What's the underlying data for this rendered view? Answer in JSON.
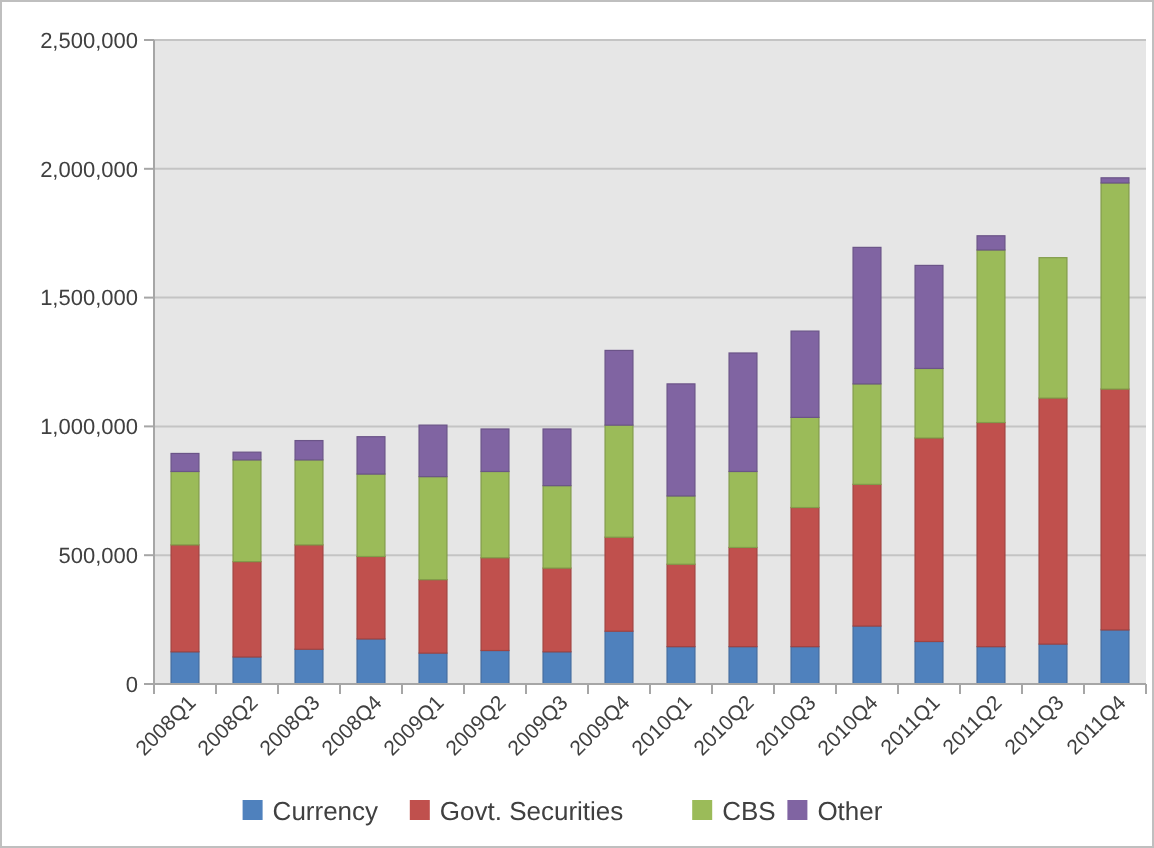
{
  "chart_data": {
    "type": "bar",
    "stacked": true,
    "categories": [
      "2008Q1",
      "2008Q2",
      "2008Q3",
      "2008Q4",
      "2009Q1",
      "2009Q2",
      "2009Q3",
      "2009Q4",
      "2010Q1",
      "2010Q2",
      "2010Q3",
      "2010Q4",
      "2011Q1",
      "2011Q2",
      "2011Q3",
      "2011Q4"
    ],
    "series": [
      {
        "name": "Currency",
        "color": "#4f81bd",
        "values": [
          125000,
          105000,
          135000,
          175000,
          120000,
          130000,
          125000,
          205000,
          145000,
          145000,
          145000,
          225000,
          165000,
          145000,
          155000,
          210000
        ]
      },
      {
        "name": "Govt. Securities",
        "color": "#c0504d",
        "values": [
          415000,
          370000,
          405000,
          320000,
          285000,
          360000,
          325000,
          365000,
          320000,
          385000,
          540000,
          550000,
          790000,
          870000,
          955000,
          935000
        ]
      },
      {
        "name": "CBS",
        "color": "#9bbb59",
        "values": [
          285000,
          395000,
          330000,
          320000,
          400000,
          335000,
          320000,
          435000,
          265000,
          295000,
          350000,
          390000,
          270000,
          670000,
          545000,
          800000
        ]
      },
      {
        "name": "Other",
        "color": "#8064a2",
        "values": [
          70000,
          30000,
          75000,
          145000,
          200000,
          165000,
          220000,
          290000,
          435000,
          460000,
          335000,
          530000,
          400000,
          55000,
          0,
          20000
        ]
      }
    ],
    "ylim": [
      0,
      2500000
    ],
    "yticks": [
      {
        "value": 0,
        "label": "0"
      },
      {
        "value": 500000,
        "label": "500,000"
      },
      {
        "value": 1000000,
        "label": "1,000,000"
      },
      {
        "value": 1500000,
        "label": "1,500,000"
      },
      {
        "value": 2000000,
        "label": "2,000,000"
      },
      {
        "value": 2500000,
        "label": "2,500,000"
      }
    ],
    "grid": "y",
    "legend": "bottom"
  }
}
